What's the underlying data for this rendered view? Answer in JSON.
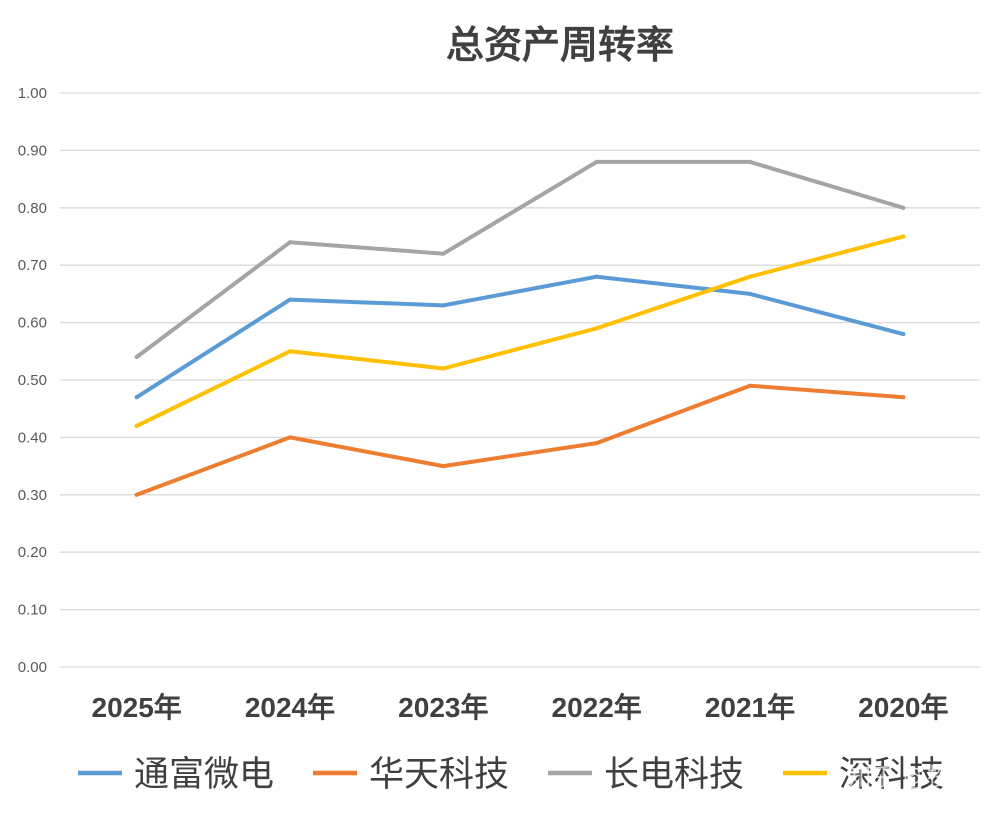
{
  "chart_data": {
    "type": "line",
    "title": "总资产周转率",
    "categories": [
      "2025年",
      "2024年",
      "2023年",
      "2022年",
      "2021年",
      "2020年"
    ],
    "ylim": [
      0,
      1.0
    ],
    "yticks": [
      "0.00",
      "0.10",
      "0.20",
      "0.30",
      "0.40",
      "0.50",
      "0.60",
      "0.70",
      "0.80",
      "0.90",
      "1.00"
    ],
    "grid": true,
    "legend_position": "bottom",
    "series": [
      {
        "name": "通富微电",
        "color": "#5B9BD5",
        "values": [
          0.47,
          0.64,
          0.63,
          0.68,
          0.65,
          0.58
        ]
      },
      {
        "name": "华天科技",
        "color": "#ED7D31",
        "values": [
          0.3,
          0.4,
          0.35,
          0.39,
          0.49,
          0.47
        ]
      },
      {
        "name": "长电科技",
        "color": "#A5A5A5",
        "values": [
          0.54,
          0.74,
          0.72,
          0.88,
          0.88,
          0.8
        ]
      },
      {
        "name": "深科技",
        "color": "#FFC000",
        "values": [
          0.42,
          0.55,
          0.52,
          0.59,
          0.68,
          0.75
        ]
      }
    ]
  },
  "watermark": "知乎 @投楠"
}
